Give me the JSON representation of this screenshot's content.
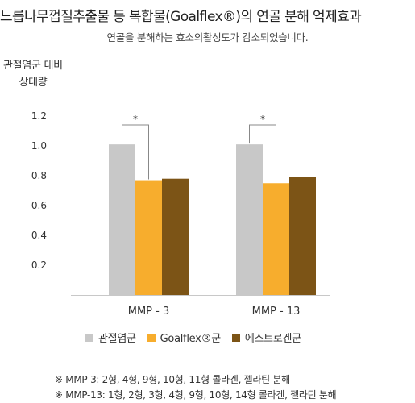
{
  "header": {
    "title": "느릅나무껍질추출물 등 복합물(Goalflex®)의 연골 분해 억제효과",
    "subtitle": "연골을 분해하는 효소의활성도가 감소되었습니다."
  },
  "chart_data": {
    "type": "bar",
    "title": "",
    "ylabel_lines": [
      "관절염군 대비",
      "상대량"
    ],
    "xlabel": "",
    "categories": [
      "MMP - 3",
      "MMP - 13"
    ],
    "ylim": [
      0,
      1.2
    ],
    "yticks": [
      0.2,
      0.4,
      0.6,
      0.8,
      1.0,
      1.2
    ],
    "ytick_labels": [
      "0.2",
      "0.4",
      "0.6",
      "0.8",
      "1.0",
      "1.2"
    ],
    "grid": false,
    "legend_position": "bottom",
    "series": [
      {
        "name": "관절염군",
        "color": "#c8c8c8",
        "values": [
          1.01,
          1.01
        ]
      },
      {
        "name": "Goalflex®군",
        "color": "#f7ad2d",
        "values": [
          0.77,
          0.75
        ]
      },
      {
        "name": "에스트로겐군",
        "color": "#7c5416",
        "values": [
          0.78,
          0.79
        ]
      }
    ],
    "annotations": [
      {
        "type": "significance",
        "category": "MMP - 3",
        "between": [
          "관절염군",
          "Goalflex®군"
        ],
        "label": "*"
      },
      {
        "type": "significance",
        "category": "MMP - 13",
        "between": [
          "관절염군",
          "Goalflex®군"
        ],
        "label": "*"
      }
    ]
  },
  "notes": [
    "※ MMP-3: 2형, 4형, 9형, 10형, 11형 콜라겐, 젤라틴 분해",
    "※ MMP-13: 1형, 2형, 3형, 4형, 9형, 10형, 14형 콜라겐, 젤라틴 분해"
  ]
}
